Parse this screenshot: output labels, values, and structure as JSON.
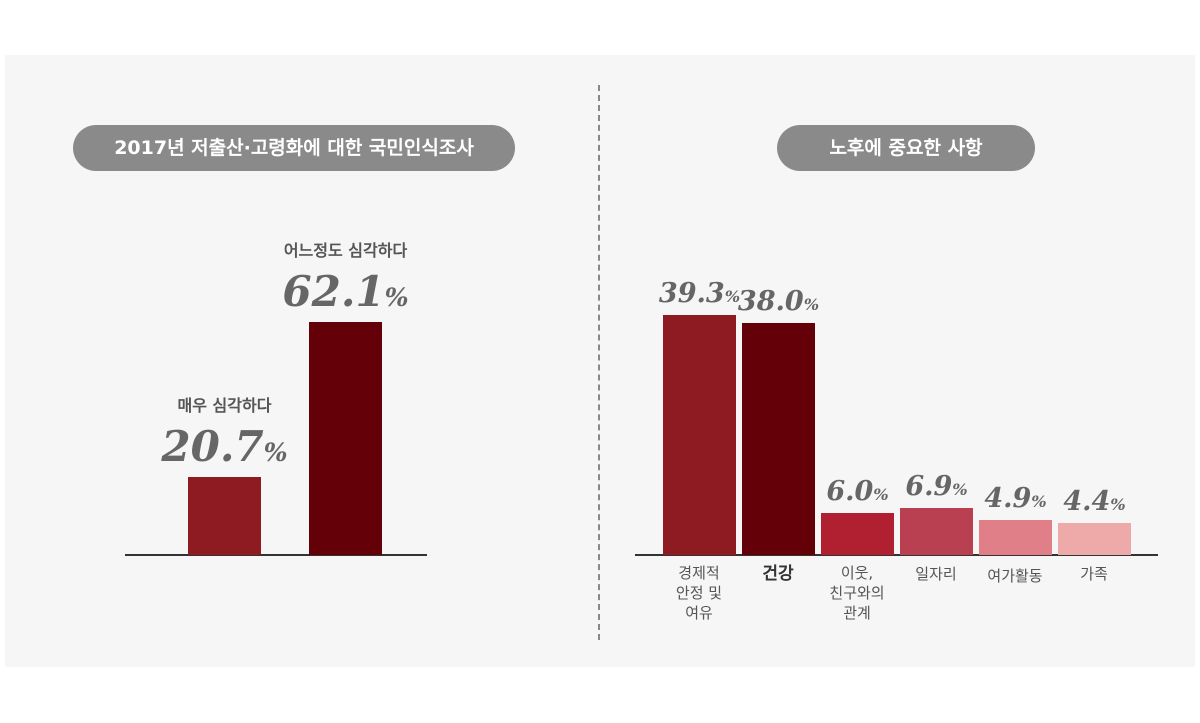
{
  "chart_data": [
    {
      "type": "bar",
      "title": "2017년 저출산·고령화에 대한 국민인식조사",
      "categories": [
        "매우 심각하다",
        "어느정도 심각하다"
      ],
      "values": [
        20.7,
        62.1
      ],
      "unit": "%",
      "colors": [
        "#8e1b22",
        "#640008"
      ]
    },
    {
      "type": "bar",
      "title": "노후에 중요한 사항",
      "categories": [
        "경제적 안정 및 여유",
        "건강",
        "이웃, 친구와의 관계",
        "일자리",
        "여가활동",
        "가족"
      ],
      "values": [
        39.3,
        38.0,
        6.0,
        6.9,
        4.9,
        4.4
      ],
      "unit": "%",
      "colors": [
        "#8e1b22",
        "#640008",
        "#b02030",
        "#b84050",
        "#e07f88",
        "#eeaaa9"
      ]
    }
  ]
}
